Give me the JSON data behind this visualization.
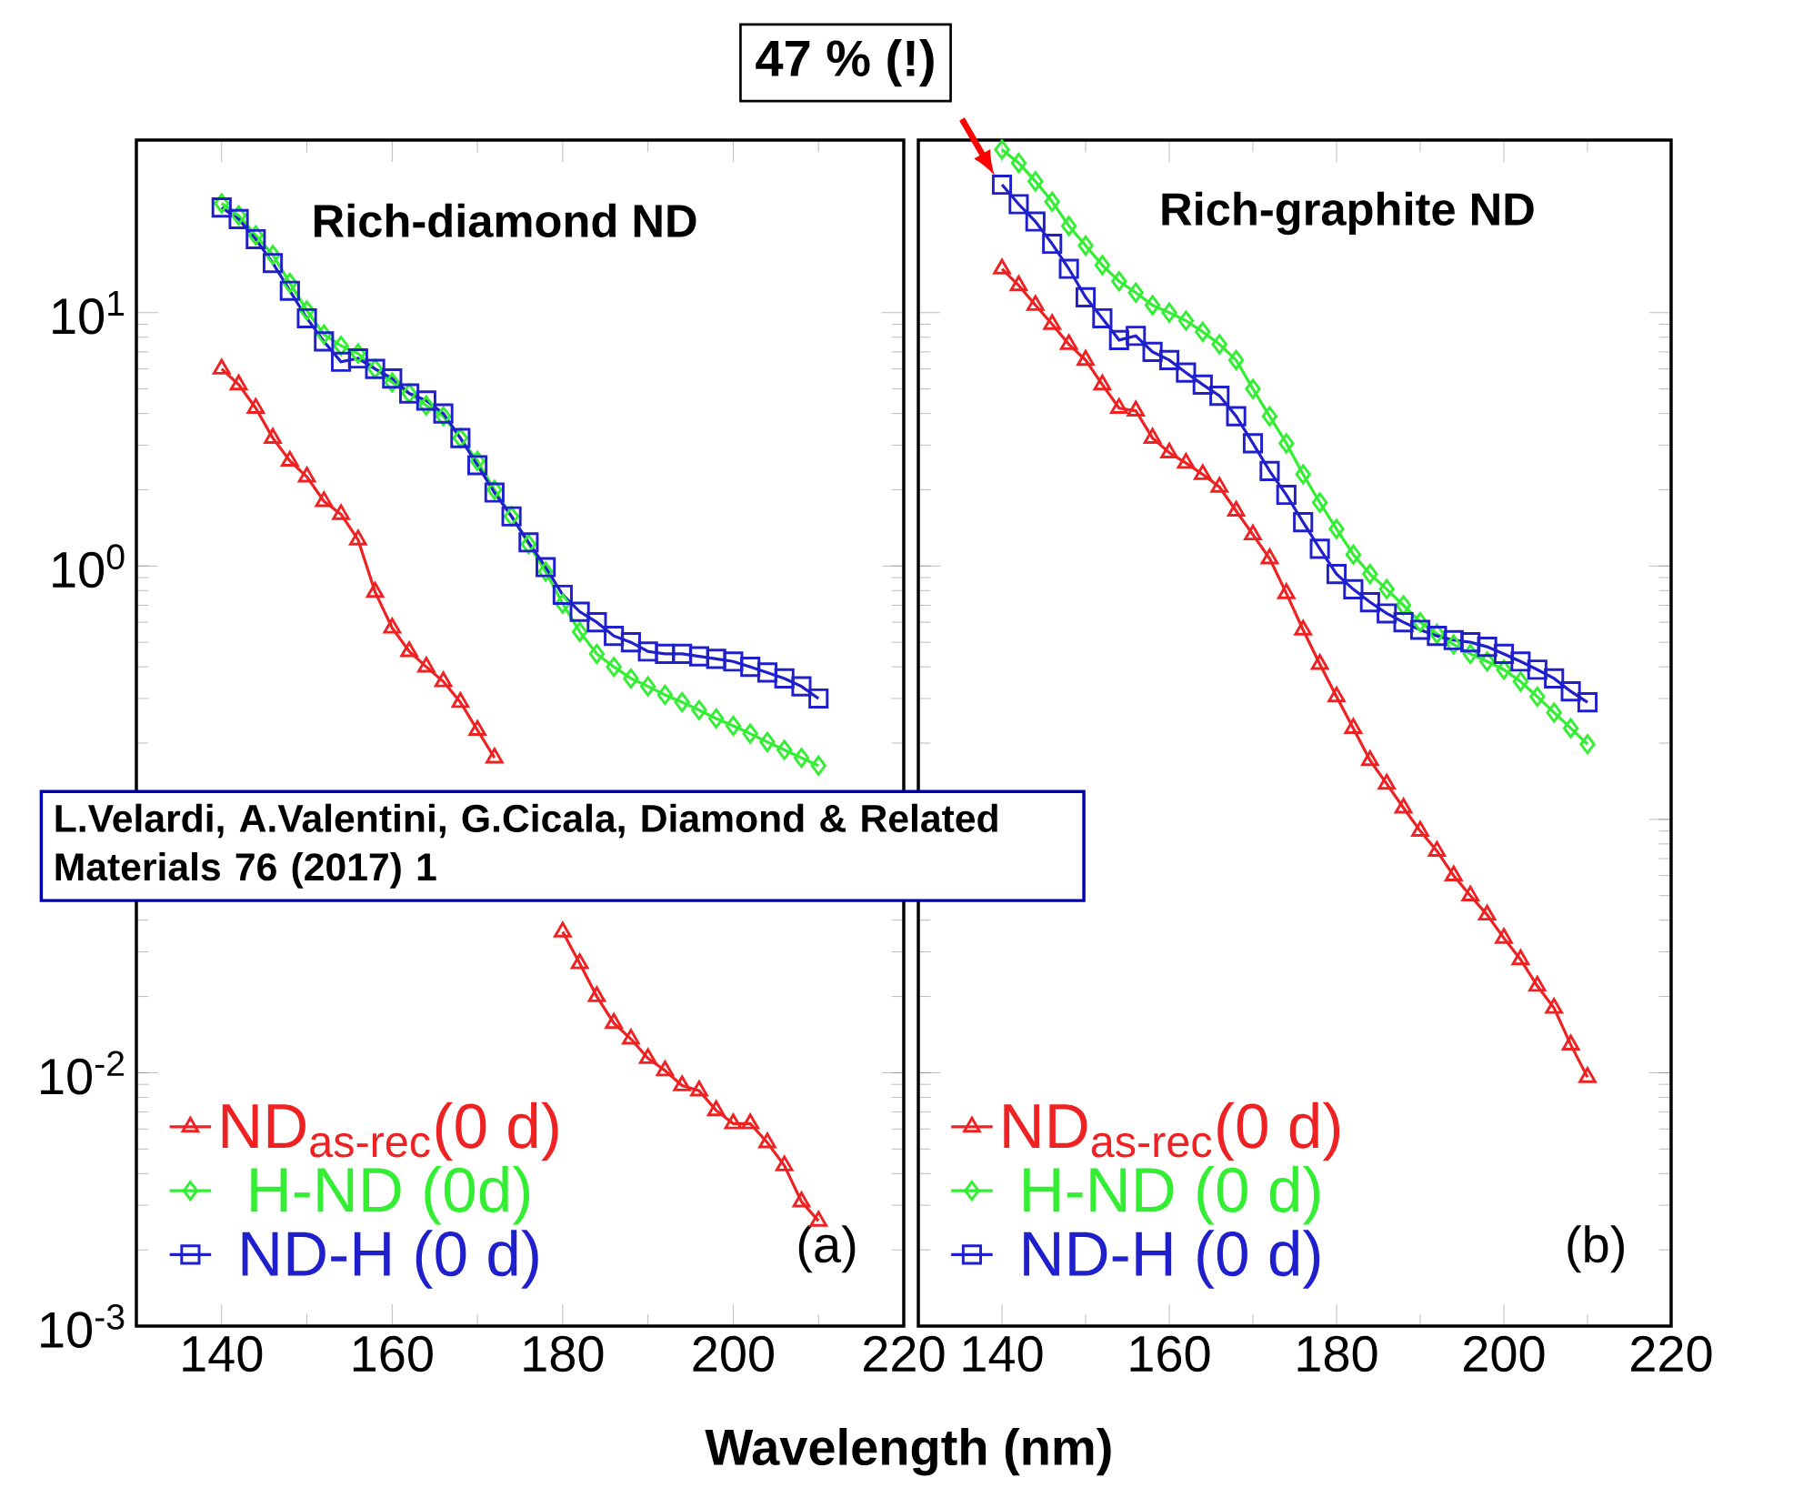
{
  "chart_data": [
    {
      "type": "line",
      "title": "Rich-diamond ND",
      "xlabel": "Wavelength (nm)",
      "log": "y",
      "legend": "bottom left",
      "x": [
        140,
        142,
        144,
        146,
        148,
        150,
        152,
        154,
        156,
        158,
        160,
        162,
        164,
        166,
        168,
        170,
        172,
        174,
        176,
        178,
        180,
        182,
        184,
        186,
        188,
        190,
        192,
        194,
        196,
        198,
        200,
        202,
        204,
        206,
        208,
        210
      ],
      "xlim": [
        130,
        220
      ],
      "ylim": [
        0.001,
        48
      ],
      "xticks": [
        140,
        160,
        180,
        200,
        220
      ],
      "yticks": [
        {
          "value": 0.001,
          "label": "10$^{-3}$"
        },
        {
          "value": 0.01,
          "label": "10$^{-2}$"
        },
        {
          "value": 0.1,
          "label": null
        },
        {
          "value": 1,
          "label": "10$^{0}$"
        },
        {
          "value": 10,
          "label": "10$^{1}$"
        }
      ],
      "series": [
        {
          "name": "ND$_{as-rec}$(0 d)",
          "color": "#ee2222",
          "marker": "triangle",
          "values": [
            6.0,
            5.2,
            4.2,
            3.2,
            2.6,
            2.25,
            1.8,
            1.6,
            1.27,
            0.79,
            0.57,
            0.46,
            0.4,
            0.35,
            0.29,
            0.225,
            0.175,
            null,
            null,
            null,
            0.036,
            0.027,
            0.02,
            0.0157,
            0.0136,
            0.0114,
            0.0102,
            0.0089,
            0.0085,
            0.0071,
            0.0063,
            0.0063,
            0.0053,
            0.0043,
            0.0031,
            0.0026
          ]
        },
        {
          "name": "H-ND (0d)",
          "color": "#33ee33",
          "marker": "diamond",
          "values": [
            27,
            24.2,
            20.2,
            16.9,
            13.1,
            10.2,
            8.2,
            7.4,
            6.9,
            6.0,
            5.3,
            4.8,
            4.3,
            3.9,
            3.2,
            2.6,
            2.0,
            1.57,
            1.22,
            0.95,
            0.71,
            0.55,
            0.45,
            0.4,
            0.36,
            0.335,
            0.31,
            0.29,
            0.27,
            0.25,
            0.234,
            0.218,
            0.202,
            0.188,
            0.175,
            0.163
          ]
        },
        {
          "name": "ND-H (0 d)",
          "color": "#1f1fcc",
          "marker": "square",
          "values": [
            26,
            23.4,
            19.5,
            15.7,
            12.2,
            9.5,
            7.7,
            6.4,
            6.6,
            6.0,
            5.5,
            4.8,
            4.5,
            4.0,
            3.2,
            2.5,
            1.95,
            1.57,
            1.24,
            0.99,
            0.77,
            0.66,
            0.6,
            0.53,
            0.5,
            0.46,
            0.45,
            0.45,
            0.44,
            0.43,
            0.42,
            0.4,
            0.38,
            0.36,
            0.335,
            0.3
          ]
        }
      ],
      "annotations": [
        "(a)",
        "L.Velardi, A.Valentini, G.Cicala, Diamond & Related Materials 76 (2017) 1"
      ]
    },
    {
      "type": "line",
      "title": "Rich-graphite ND",
      "log": "y",
      "legend": "bottom left",
      "tick_labels": "x",
      "x": [
        140,
        142,
        144,
        146,
        148,
        150,
        152,
        154,
        156,
        158,
        160,
        162,
        164,
        166,
        168,
        170,
        172,
        174,
        176,
        178,
        180,
        182,
        184,
        186,
        188,
        190,
        192,
        194,
        196,
        198,
        200,
        202,
        204,
        206,
        208,
        210
      ],
      "xlim": [
        130,
        220
      ],
      "ylim": [
        0.001,
        48
      ],
      "xticks": [
        140,
        160,
        180,
        200,
        220
      ],
      "yticks": [
        0.001,
        0.01,
        0.1,
        1,
        10
      ],
      "series": [
        {
          "name": "ND$_{as-rec}$(0 d)",
          "color": "#ee2222",
          "marker": "triangle",
          "values": [
            14.9,
            12.8,
            10.7,
            9.0,
            7.5,
            6.5,
            5.2,
            4.2,
            4.1,
            3.2,
            2.8,
            2.55,
            2.3,
            2.05,
            1.65,
            1.33,
            1.07,
            0.78,
            0.56,
            0.41,
            0.305,
            0.229,
            0.171,
            0.138,
            0.111,
            0.09,
            0.075,
            0.06,
            0.05,
            0.042,
            0.034,
            0.028,
            0.022,
            0.018,
            0.0129,
            0.0096
          ]
        },
        {
          "name": "H-ND (0 d)",
          "color": "#33ee33",
          "marker": "diamond",
          "values": [
            44,
            39,
            33,
            27.4,
            22,
            18.4,
            15.4,
            13.3,
            12.0,
            10.7,
            10.0,
            9.3,
            8.4,
            7.5,
            6.5,
            5.0,
            3.9,
            3.05,
            2.3,
            1.78,
            1.4,
            1.11,
            0.93,
            0.81,
            0.7,
            0.6,
            0.54,
            0.49,
            0.45,
            0.42,
            0.39,
            0.35,
            0.305,
            0.264,
            0.229,
            0.198
          ]
        },
        {
          "name": "ND-H (0 d)",
          "color": "#1f1fcc",
          "marker": "square",
          "values": [
            32,
            26.8,
            22.9,
            18.7,
            14.9,
            11.5,
            9.5,
            7.8,
            8.1,
            7.0,
            6.5,
            5.8,
            5.2,
            4.7,
            3.9,
            3.05,
            2.37,
            1.91,
            1.49,
            1.17,
            0.93,
            0.81,
            0.72,
            0.65,
            0.6,
            0.56,
            0.53,
            0.51,
            0.5,
            0.48,
            0.45,
            0.42,
            0.39,
            0.36,
            0.32,
            0.29
          ]
        }
      ],
      "annotations": [
        "(b)",
        {
          "text": "47 % (!)",
          "x": 140,
          "y": 32
        }
      ]
    }
  ]
}
